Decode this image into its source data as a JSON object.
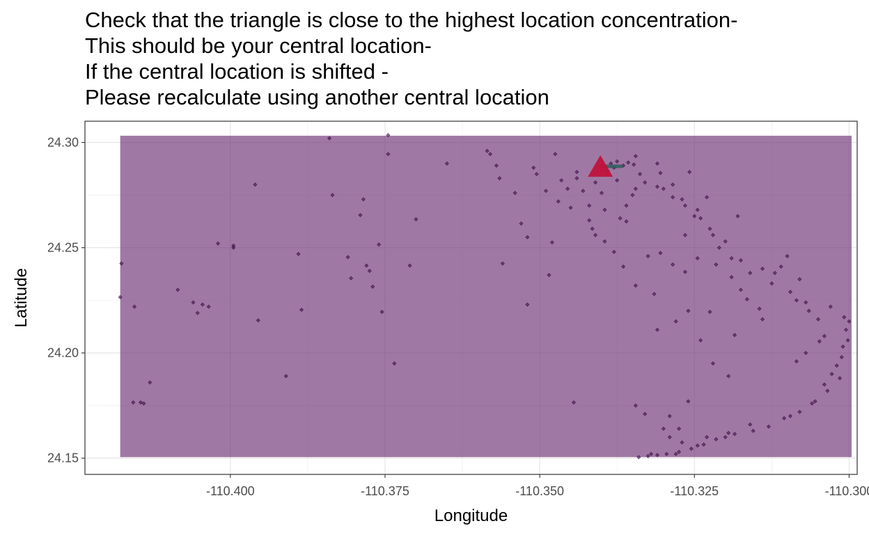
{
  "chart_data": {
    "type": "scatter",
    "title_lines": [
      "Check that the triangle is close to the highest location concentration-",
      "This should be your central location-",
      "If the central location is shifted -",
      "Please recalculate using another central location"
    ],
    "xlabel": "Longitude",
    "ylabel": "Latitude",
    "xlim": [
      -110.4235,
      -110.2987
    ],
    "ylim": [
      24.1423,
      24.3101
    ],
    "x_ticks": [
      -110.4,
      -110.375,
      -110.35,
      -110.325,
      -110.3
    ],
    "x_tick_labels": [
      "-110.400",
      "-110.375",
      "-110.350",
      "-110.325",
      "-110.300"
    ],
    "y_ticks": [
      24.15,
      24.2,
      24.25,
      24.3
    ],
    "y_tick_labels": [
      "24.15",
      "24.20",
      "24.25",
      "24.30"
    ],
    "grid": true,
    "bounding_box": {
      "xmin": -110.4178,
      "xmax": -110.2996,
      "ymin": 24.1505,
      "ymax": 24.3032,
      "color": "#6a2c70"
    },
    "central_location": {
      "x": -110.3402,
      "y": 24.288,
      "color": "#c0123c",
      "marker": "triangle"
    },
    "point_color": "#3b0a45",
    "points": [
      [
        -110.4176,
        24.2425
      ],
      [
        -110.4178,
        24.2265
      ],
      [
        -110.4155,
        24.222
      ],
      [
        -110.4157,
        24.1765
      ],
      [
        -110.4145,
        24.1765
      ],
      [
        -110.414,
        24.176
      ],
      [
        -110.413,
        24.186
      ],
      [
        -110.4085,
        24.23
      ],
      [
        -110.406,
        24.224
      ],
      [
        -110.4053,
        24.219
      ],
      [
        -110.4045,
        24.223
      ],
      [
        -110.4035,
        24.222
      ],
      [
        -110.402,
        24.252
      ],
      [
        -110.3995,
        24.251
      ],
      [
        -110.3995,
        24.25
      ],
      [
        -110.396,
        24.28
      ],
      [
        -110.3955,
        24.2155
      ],
      [
        -110.391,
        24.189
      ],
      [
        -110.389,
        24.247
      ],
      [
        -110.3885,
        24.2205
      ],
      [
        -110.384,
        24.302
      ],
      [
        -110.3835,
        24.275
      ],
      [
        -110.381,
        24.2455
      ],
      [
        -110.3805,
        24.2355
      ],
      [
        -110.379,
        24.2655
      ],
      [
        -110.3785,
        24.273
      ],
      [
        -110.378,
        24.2415
      ],
      [
        -110.3775,
        24.239
      ],
      [
        -110.377,
        24.2315
      ],
      [
        -110.376,
        24.2515
      ],
      [
        -110.3755,
        24.2195
      ],
      [
        -110.3745,
        24.3035
      ],
      [
        -110.3745,
        24.2945
      ],
      [
        -110.3735,
        24.195
      ],
      [
        -110.371,
        24.2415
      ],
      [
        -110.37,
        24.2635
      ],
      [
        -110.365,
        24.29
      ],
      [
        -110.3585,
        24.296
      ],
      [
        -110.358,
        24.2945
      ],
      [
        -110.357,
        24.289
      ],
      [
        -110.3565,
        24.283
      ],
      [
        -110.356,
        24.2425
      ],
      [
        -110.354,
        24.276
      ],
      [
        -110.353,
        24.2615
      ],
      [
        -110.352,
        24.255
      ],
      [
        -110.352,
        24.223
      ],
      [
        -110.351,
        24.288
      ],
      [
        -110.3505,
        24.285
      ],
      [
        -110.349,
        24.277
      ],
      [
        -110.3485,
        24.237
      ],
      [
        -110.348,
        24.2525
      ],
      [
        -110.3475,
        24.2945
      ],
      [
        -110.3465,
        24.282
      ],
      [
        -110.345,
        24.269
      ],
      [
        -110.3445,
        24.1765
      ],
      [
        -110.344,
        24.286
      ],
      [
        -110.343,
        24.277
      ],
      [
        -110.342,
        24.263
      ],
      [
        -110.341,
        24.256
      ],
      [
        -110.34,
        24.276
      ],
      [
        -110.339,
        24.2865
      ],
      [
        -110.3385,
        24.29
      ],
      [
        -110.338,
        24.288
      ],
      [
        -110.3375,
        24.282
      ],
      [
        -110.336,
        24.2625
      ],
      [
        -110.335,
        24.275
      ],
      [
        -110.3345,
        24.175
      ],
      [
        -110.334,
        24.1505
      ],
      [
        -110.3338,
        24.285
      ],
      [
        -110.333,
        24.171
      ],
      [
        -110.332,
        24.152
      ],
      [
        -110.331,
        24.29
      ],
      [
        -110.3305,
        24.2855
      ],
      [
        -110.33,
        24.278
      ],
      [
        -110.329,
        24.17
      ],
      [
        -110.3285,
        24.28
      ],
      [
        -110.328,
        24.152
      ],
      [
        -110.3275,
        24.164
      ],
      [
        -110.327,
        24.273
      ],
      [
        -110.3265,
        24.256
      ],
      [
        -110.326,
        24.177
      ],
      [
        -110.3258,
        24.286
      ],
      [
        -110.325,
        24.265
      ],
      [
        -110.324,
        24.264
      ],
      [
        -110.323,
        24.274
      ],
      [
        -110.322,
        24.256
      ],
      [
        -110.321,
        24.25
      ],
      [
        -110.32,
        24.16
      ],
      [
        -110.319,
        24.245
      ],
      [
        -110.318,
        24.265
      ],
      [
        -110.3175,
        24.23
      ],
      [
        -110.316,
        24.238
      ],
      [
        -110.314,
        24.216
      ],
      [
        -110.312,
        24.238
      ],
      [
        -110.31,
        24.246
      ],
      [
        -110.308,
        24.235
      ],
      [
        -110.307,
        24.224
      ],
      [
        -110.305,
        24.216
      ],
      [
        -110.304,
        24.208
      ],
      [
        -110.302,
        24.194
      ],
      [
        -110.301,
        24.203
      ],
      [
        -110.3005,
        24.211
      ],
      [
        -110.3,
        24.215
      ],
      [
        -110.3015,
        24.188
      ],
      [
        -110.3035,
        24.182
      ],
      [
        -110.3055,
        24.177
      ],
      [
        -110.308,
        24.172
      ],
      [
        -110.3105,
        24.169
      ],
      [
        -110.313,
        24.165
      ],
      [
        -110.3155,
        24.163
      ],
      [
        -110.3185,
        24.1615
      ],
      [
        -110.3215,
        24.159
      ],
      [
        -110.3235,
        24.1565
      ],
      [
        -110.3255,
        24.1545
      ],
      [
        -110.3275,
        24.153
      ],
      [
        -110.3295,
        24.152
      ],
      [
        -110.331,
        24.1515
      ],
      [
        -110.3325,
        24.151
      ],
      [
        -110.327,
        24.1575
      ],
      [
        -110.3245,
        24.156
      ],
      [
        -110.329,
        24.16
      ],
      [
        -110.33,
        24.164
      ],
      [
        -110.323,
        24.16
      ],
      [
        -110.3195,
        24.162
      ],
      [
        -110.316,
        24.166
      ],
      [
        -110.3095,
        24.17
      ],
      [
        -110.306,
        24.176
      ],
      [
        -110.304,
        24.185
      ],
      [
        -110.3028,
        24.19
      ],
      [
        -110.3012,
        24.198
      ],
      [
        -110.3002,
        24.206
      ],
      [
        -110.3125,
        24.233
      ],
      [
        -110.314,
        24.24
      ],
      [
        -110.311,
        24.241
      ],
      [
        -110.3095,
        24.229
      ],
      [
        -110.3085,
        24.225
      ],
      [
        -110.3065,
        24.22
      ],
      [
        -110.303,
        24.222
      ],
      [
        -110.3008,
        24.217
      ],
      [
        -110.3048,
        24.2055
      ],
      [
        -110.307,
        24.2
      ],
      [
        -110.3085,
        24.196
      ],
      [
        -110.3175,
        24.244
      ],
      [
        -110.32,
        24.253
      ],
      [
        -110.3225,
        24.259
      ],
      [
        -110.3245,
        24.268
      ],
      [
        -110.3265,
        24.27
      ],
      [
        -110.3285,
        24.274
      ],
      [
        -110.331,
        24.279
      ],
      [
        -110.333,
        24.281
      ],
      [
        -110.3345,
        24.278
      ],
      [
        -110.336,
        24.27
      ],
      [
        -110.337,
        24.264
      ],
      [
        -110.3325,
        24.246
      ],
      [
        -110.3305,
        24.2475
      ],
      [
        -110.3285,
        24.242
      ],
      [
        -110.3265,
        24.2385
      ],
      [
        -110.3245,
        24.245
      ],
      [
        -110.3215,
        24.242
      ],
      [
        -110.319,
        24.236
      ],
      [
        -110.3165,
        24.2255
      ],
      [
        -110.3145,
        24.221
      ],
      [
        -110.3185,
        24.2085
      ],
      [
        -110.3225,
        24.2195
      ],
      [
        -110.326,
        24.22
      ],
      [
        -110.328,
        24.215
      ],
      [
        -110.331,
        24.211
      ],
      [
        -110.3195,
        24.189
      ],
      [
        -110.322,
        24.195
      ],
      [
        -110.324,
        24.206
      ],
      [
        -110.3315,
        24.228
      ],
      [
        -110.3345,
        24.232
      ],
      [
        -110.3365,
        24.241
      ],
      [
        -110.338,
        24.248
      ],
      [
        -110.3395,
        24.253
      ],
      [
        -110.3415,
        24.259
      ],
      [
        -110.342,
        24.27
      ],
      [
        -110.3395,
        24.268
      ],
      [
        -110.341,
        24.281
      ],
      [
        -110.344,
        24.283
      ],
      [
        -110.3455,
        24.278
      ],
      [
        -110.347,
        24.272
      ],
      [
        -110.3345,
        24.2935
      ],
      [
        -110.3365,
        24.289
      ],
      [
        -110.3375,
        24.291
      ],
      [
        -110.3348,
        24.2895
      ],
      [
        -110.3357,
        24.2905
      ]
    ]
  }
}
